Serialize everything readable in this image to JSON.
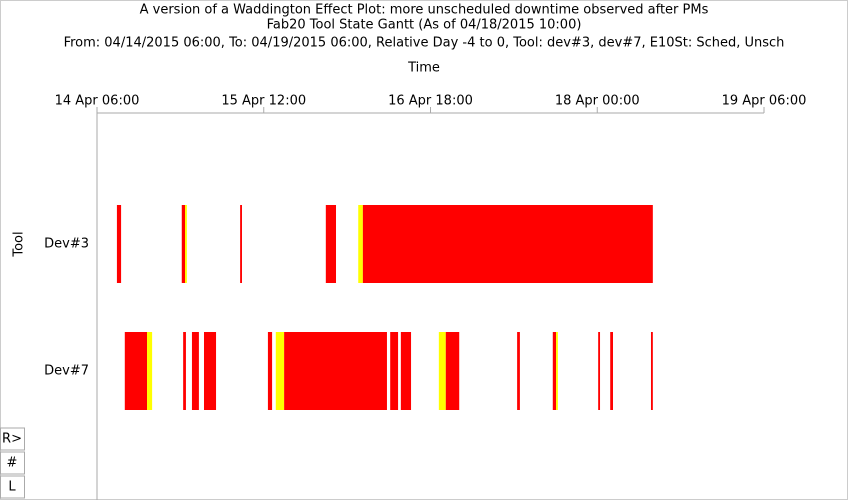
{
  "chart_data": {
    "type": "gantt",
    "title": "A version of a Waddington Effect Plot: more unscheduled downtime observed after PMs",
    "subtitle": "Fab20 Tool State Gantt  (As of 04/18/2015 10:00)",
    "filter_text": "From: 04/14/2015 06:00, To: 04/19/2015 06:00, Relative Day -4 to 0, Tool: dev#3, dev#7, E10St: Sched, Unsch",
    "x_label": "Time",
    "y_label": "Tool",
    "xlim": [
      "14 Apr 06:00",
      "19 Apr 06:00"
    ],
    "xticks": [
      "14 Apr 06:00",
      "15 Apr 12:00",
      "16 Apr 18:00",
      "18 Apr 00:00",
      "19 Apr 06:00"
    ],
    "rows": [
      {
        "name": "Dev#3",
        "segments": [
          {
            "start": "14 Apr 09:35",
            "end": "14 Apr 10:20",
            "color": "#ff0000"
          },
          {
            "start": "14 Apr 21:15",
            "end": "14 Apr 21:50",
            "color": "#ff0000"
          },
          {
            "start": "14 Apr 21:50",
            "end": "14 Apr 22:10",
            "color": "#ffff00"
          },
          {
            "start": "15 Apr 07:45",
            "end": "15 Apr 08:05",
            "color": "#ff0000"
          },
          {
            "start": "15 Apr 23:10",
            "end": "16 Apr 01:00",
            "color": "#ff0000"
          },
          {
            "start": "16 Apr 05:00",
            "end": "16 Apr 05:50",
            "color": "#ffff00"
          },
          {
            "start": "16 Apr 05:50",
            "end": "18 Apr 10:00",
            "color": "#ff0000"
          }
        ]
      },
      {
        "name": "Dev#7",
        "segments": [
          {
            "start": "14 Apr 11:00",
            "end": "14 Apr 15:00",
            "color": "#ff0000"
          },
          {
            "start": "14 Apr 15:00",
            "end": "14 Apr 15:55",
            "color": "#ffff00"
          },
          {
            "start": "14 Apr 21:30",
            "end": "14 Apr 22:00",
            "color": "#ff0000"
          },
          {
            "start": "14 Apr 23:05",
            "end": "15 Apr 00:20",
            "color": "#ff0000"
          },
          {
            "start": "15 Apr 01:15",
            "end": "15 Apr 03:25",
            "color": "#ff0000"
          },
          {
            "start": "15 Apr 12:45",
            "end": "15 Apr 13:30",
            "color": "#ff0000"
          },
          {
            "start": "15 Apr 14:10",
            "end": "15 Apr 15:40",
            "color": "#ffff00"
          },
          {
            "start": "15 Apr 15:40",
            "end": "16 Apr 10:10",
            "color": "#ff0000"
          },
          {
            "start": "16 Apr 10:45",
            "end": "16 Apr 12:10",
            "color": "#ff0000"
          },
          {
            "start": "16 Apr 12:40",
            "end": "16 Apr 14:30",
            "color": "#ff0000"
          },
          {
            "start": "16 Apr 19:30",
            "end": "16 Apr 20:45",
            "color": "#ffff00"
          },
          {
            "start": "16 Apr 20:45",
            "end": "16 Apr 23:10",
            "color": "#ff0000"
          },
          {
            "start": "17 Apr 09:35",
            "end": "17 Apr 10:05",
            "color": "#ff0000"
          },
          {
            "start": "17 Apr 16:00",
            "end": "17 Apr 16:35",
            "color": "#ff0000"
          },
          {
            "start": "17 Apr 16:35",
            "end": "17 Apr 16:55",
            "color": "#ffff00"
          },
          {
            "start": "18 Apr 00:10",
            "end": "18 Apr 00:30",
            "color": "#ff0000"
          },
          {
            "start": "18 Apr 02:20",
            "end": "18 Apr 02:50",
            "color": "#ff0000"
          },
          {
            "start": "18 Apr 09:40",
            "end": "18 Apr 10:00",
            "color": "#ff0000"
          }
        ]
      }
    ],
    "controls": [
      "R>",
      "#",
      "L"
    ]
  }
}
